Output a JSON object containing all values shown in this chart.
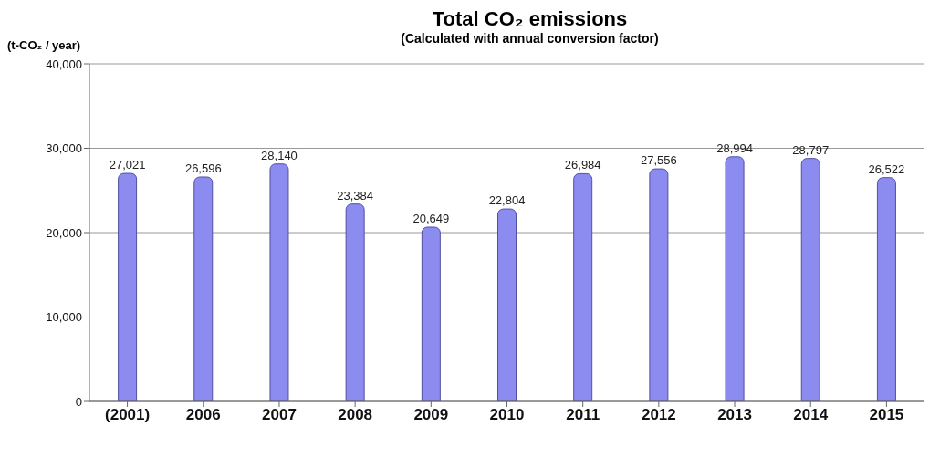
{
  "chart_data": {
    "type": "bar",
    "title": "Total CO₂ emissions",
    "subtitle": "(Calculated with annual conversion factor)",
    "ylabel": "(t-CO₂ / year)",
    "categories": [
      "(2001)",
      "2006",
      "2007",
      "2008",
      "2009",
      "2010",
      "2011",
      "2012",
      "2013",
      "2014",
      "2015"
    ],
    "values": [
      27021,
      26596,
      28140,
      23384,
      20649,
      22804,
      26984,
      27556,
      28994,
      28797,
      26522
    ],
    "value_labels": [
      "27,021",
      "26,596",
      "28,140",
      "23,384",
      "20,649",
      "22,804",
      "26,984",
      "27,556",
      "28,994",
      "28,797",
      "26,522"
    ],
    "color": "#8c8cf0",
    "ylim": [
      0,
      40000
    ],
    "yticks": [
      {
        "value": 0,
        "label": "0"
      },
      {
        "value": 10000,
        "label": "10,000"
      },
      {
        "value": 20000,
        "label": "20,000"
      },
      {
        "value": 30000,
        "label": "30,000"
      },
      {
        "value": 40000,
        "label": "40,000"
      }
    ],
    "grid": "y",
    "legend": false
  }
}
